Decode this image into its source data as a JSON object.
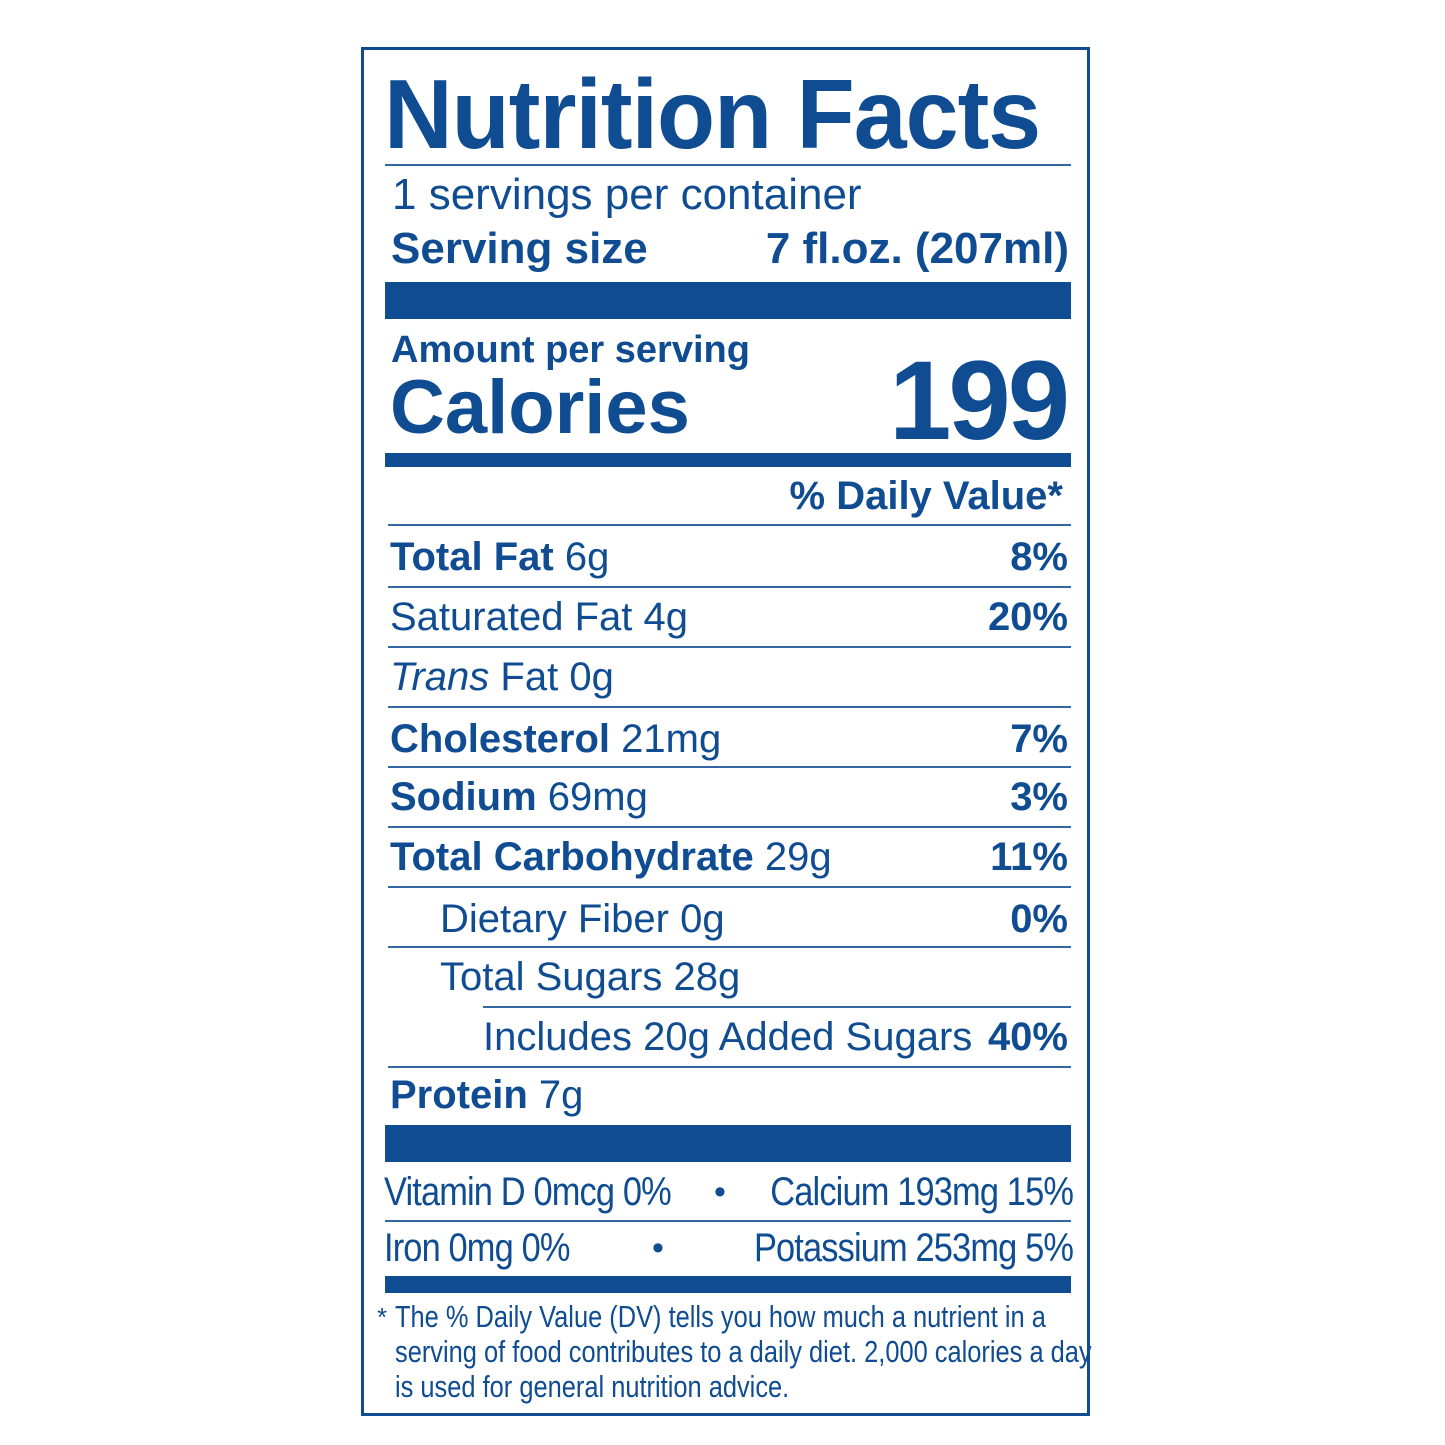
{
  "title": "Nutrition Facts",
  "servings_per_container": "1 servings per container",
  "serving_size_label": "Serving size",
  "serving_size_value": "7 fl.oz. (207ml)",
  "amount_per_serving": "Amount per serving",
  "calories_label": "Calories",
  "calories_value": "199",
  "daily_value_header": "% Daily Value*",
  "nutrients": [
    {
      "name": "Total Fat",
      "amount": "6g",
      "dv": "8%"
    },
    {
      "name": "Saturated Fat",
      "amount": "4g",
      "dv": "20%"
    },
    {
      "name_italic": "Trans",
      "name": "Fat",
      "amount": "0g",
      "dv": ""
    },
    {
      "name": "Cholesterol",
      "amount": "21mg",
      "dv": "7%"
    },
    {
      "name": "Sodium",
      "amount": "69mg",
      "dv": "3%"
    },
    {
      "name": "Total Carbohydrate",
      "amount": "29g",
      "dv": "11%"
    },
    {
      "name": "Dietary Fiber",
      "amount": "0g",
      "dv": "0%"
    },
    {
      "name": "Total Sugars",
      "amount": "28g",
      "dv": ""
    },
    {
      "name": "Includes 20g Added Sugars",
      "amount": "",
      "dv": "40%"
    },
    {
      "name": "Protein",
      "amount": "7g",
      "dv": ""
    }
  ],
  "micronutrients": {
    "vitamin_d": "Vitamin D 0mcg 0%",
    "calcium": "Calcium 193mg 15%",
    "iron": "Iron 0mg 0%",
    "potassium": "Potassium 253mg 5%",
    "separator": "•"
  },
  "footnote": {
    "asterisk": "*",
    "line1": "The % Daily Value (DV) tells you how much a nutrient in a",
    "line2": "serving of food contributes to a daily diet. 2,000 calories a day",
    "line3": "is used for general nutrition advice."
  },
  "colors": {
    "ink": "#0f4c92",
    "background": "#ffffff"
  }
}
